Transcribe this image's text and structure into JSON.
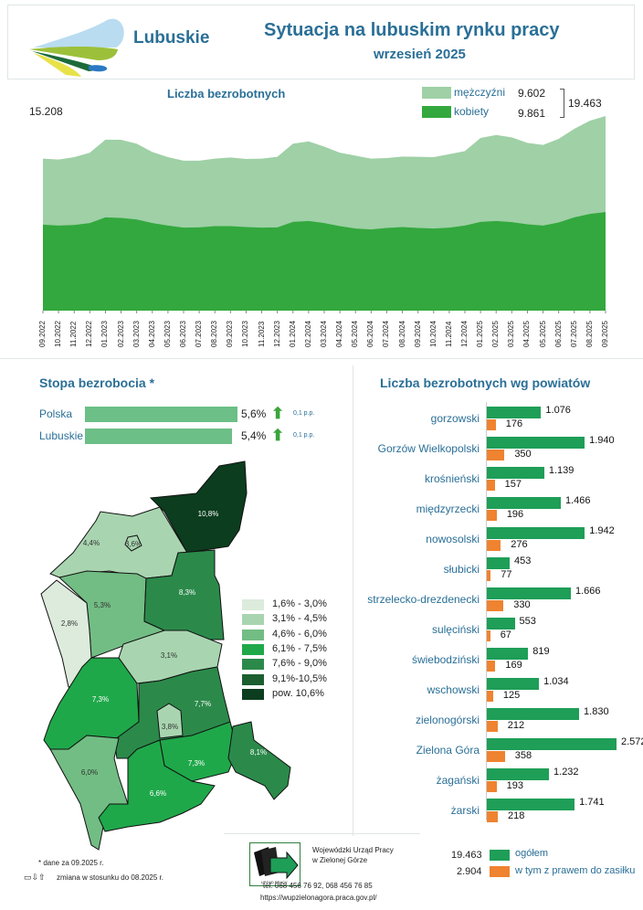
{
  "header": {
    "brand": "Lubuskie",
    "title": "Sytuacja na lubuskim rynku pracy",
    "subtitle": "wrzesień 2025"
  },
  "colors": {
    "title_blue": "#2a6f97",
    "men": "#9fd0a6",
    "women": "#33a83e",
    "total_bar": "#1e9e57",
    "benefit_bar": "#ef8330",
    "rate_bar": "#6cbf86",
    "arrow_up": "#3aa53a"
  },
  "area_chart": {
    "title": "Liczba bezrobotnych",
    "start_label": "15.208",
    "legend": [
      {
        "name": "mężczyźni",
        "value": "9.602",
        "color": "#9fd0a6"
      },
      {
        "name": "kobiety",
        "value": "9.861",
        "color": "#33a83e"
      }
    ],
    "total_label": "19.463"
  },
  "chart_data": [
    {
      "type": "area",
      "stacked": true,
      "title": "Liczba bezrobotnych",
      "x": [
        "09.2022",
        "10.2022",
        "11.2022",
        "12.2022",
        "01.2023",
        "02.2023",
        "03.2023",
        "04.2023",
        "05.2023",
        "06.2023",
        "07.2023",
        "08.2023",
        "09.2023",
        "10.2023",
        "11.2023",
        "12.2023",
        "01.2024",
        "02.2024",
        "03.2024",
        "04.2024",
        "05.2024",
        "06.2024",
        "07.2024",
        "08.2024",
        "09.2024",
        "10.2024",
        "11.2024",
        "12.2024",
        "01.2025",
        "02.2025",
        "03.2025",
        "04.2025",
        "05.2025",
        "06.2025",
        "07.2025",
        "08.2025",
        "09.2025"
      ],
      "series": [
        {
          "name": "kobiety",
          "values": [
            8600,
            8510,
            8570,
            8760,
            9330,
            9270,
            9120,
            8760,
            8510,
            8300,
            8330,
            8450,
            8450,
            8360,
            8300,
            8330,
            8880,
            8970,
            8760,
            8450,
            8210,
            8120,
            8270,
            8360,
            8270,
            8210,
            8300,
            8510,
            8880,
            8970,
            8850,
            8630,
            8510,
            8820,
            9330,
            9670,
            9861
          ]
        },
        {
          "name": "mężczyźni",
          "values": [
            6608,
            6600,
            6780,
            7040,
            7770,
            7820,
            7580,
            7110,
            6840,
            6700,
            6670,
            6750,
            6870,
            6810,
            6900,
            7050,
            7820,
            7960,
            7640,
            7350,
            7290,
            7080,
            6990,
            7050,
            7110,
            7140,
            7350,
            7450,
            8390,
            8600,
            8480,
            8150,
            8060,
            8360,
            8850,
            9330,
            9602
          ]
        }
      ],
      "ylim": [
        0,
        20000
      ],
      "grid": false,
      "legend": "top-right"
    },
    {
      "type": "bar",
      "orientation": "horizontal",
      "title": "Stopa bezrobocia *",
      "categories": [
        "Polska",
        "Lubuskie"
      ],
      "values": [
        5.6,
        5.4
      ],
      "value_labels": [
        "5,6%",
        "5,4%"
      ],
      "change": [
        "0,1 p.p.",
        "0,1 p.p."
      ],
      "change_direction": [
        "up",
        "up"
      ]
    },
    {
      "type": "bar",
      "orientation": "horizontal",
      "title": "Liczba bezrobotnych wg powiatów",
      "categories": [
        "gorzowski",
        "Gorzów Wielkopolski",
        "krośnieński",
        "międzyrzecki",
        "nowosolski",
        "słubicki",
        "strzelecko-drezdenecki",
        "sulęciński",
        "świebodziński",
        "wschowski",
        "zielonogórski",
        "Zielona Góra",
        "żagański",
        "żarski"
      ],
      "series": [
        {
          "name": "ogółem",
          "values": [
            1076,
            1940,
            1139,
            1466,
            1942,
            453,
            1666,
            553,
            819,
            1034,
            1830,
            2572,
            1232,
            1741
          ],
          "labels": [
            "1.076",
            "1.940",
            "1.139",
            "1.466",
            "1.942",
            "453",
            "1.666",
            "553",
            "819",
            "1.034",
            "1.830",
            "2.572",
            "1.232",
            "1.741"
          ]
        },
        {
          "name": "w tym z prawem do zasiłku",
          "values": [
            176,
            350,
            157,
            196,
            276,
            77,
            330,
            67,
            169,
            125,
            212,
            358,
            193,
            218
          ],
          "labels": [
            "176",
            "350",
            "157",
            "196",
            "276",
            "77",
            "330",
            "67",
            "169",
            "125",
            "212",
            "358",
            "193",
            "218"
          ]
        }
      ],
      "totals": [
        {
          "value": "19.463",
          "name": "ogółem"
        },
        {
          "value": "2.904",
          "name": "w tym z prawem do zasiłku"
        }
      ]
    }
  ],
  "map": {
    "regions": [
      {
        "label": "10,8%",
        "cls": 6
      },
      {
        "label": "4,4%",
        "cls": 1
      },
      {
        "label": "3,6%",
        "cls": 1
      },
      {
        "label": "5,3%",
        "cls": 2
      },
      {
        "label": "2,8%",
        "cls": 0
      },
      {
        "label": "8,3%",
        "cls": 4
      },
      {
        "label": "3,1%",
        "cls": 1
      },
      {
        "label": "7,3%",
        "cls": 3
      },
      {
        "label": "7,7%",
        "cls": 4
      },
      {
        "label": "3,8%",
        "cls": 1
      },
      {
        "label": "7,3%",
        "cls": 3
      },
      {
        "label": "8,1%",
        "cls": 4
      },
      {
        "label": "6,0%",
        "cls": 2
      },
      {
        "label": "6,6%",
        "cls": 3
      }
    ],
    "legend": [
      {
        "label": "1,6% - 3,0%",
        "color": "#dcebdc"
      },
      {
        "label": "3,1% - 4,5%",
        "color": "#a8d5b0"
      },
      {
        "label": "4,6% - 6,0%",
        "color": "#72bd84"
      },
      {
        "label": "6,1% - 7,5%",
        "color": "#1fa84a"
      },
      {
        "label": "7,6% - 9,0%",
        "color": "#2b8a4a"
      },
      {
        "label": "9,1%-10,5%",
        "color": "#1b5e30"
      },
      {
        "label": "pow. 10,6%",
        "color": "#0b3d1e"
      }
    ]
  },
  "footer": {
    "note": "* dane za 09.2025 r.",
    "change_note": "zmiana w stosunku do 08.2025 r.",
    "org_line1": "Wojewódzki Urząd Pracy",
    "org_line2": "w Zielonej Górze",
    "logo_text": "URZĄD PRACY",
    "phone": "tel. 068 456 76 92,  068 456 76 85",
    "url": "https://wupzielonagora.praca.gov.pl/"
  }
}
